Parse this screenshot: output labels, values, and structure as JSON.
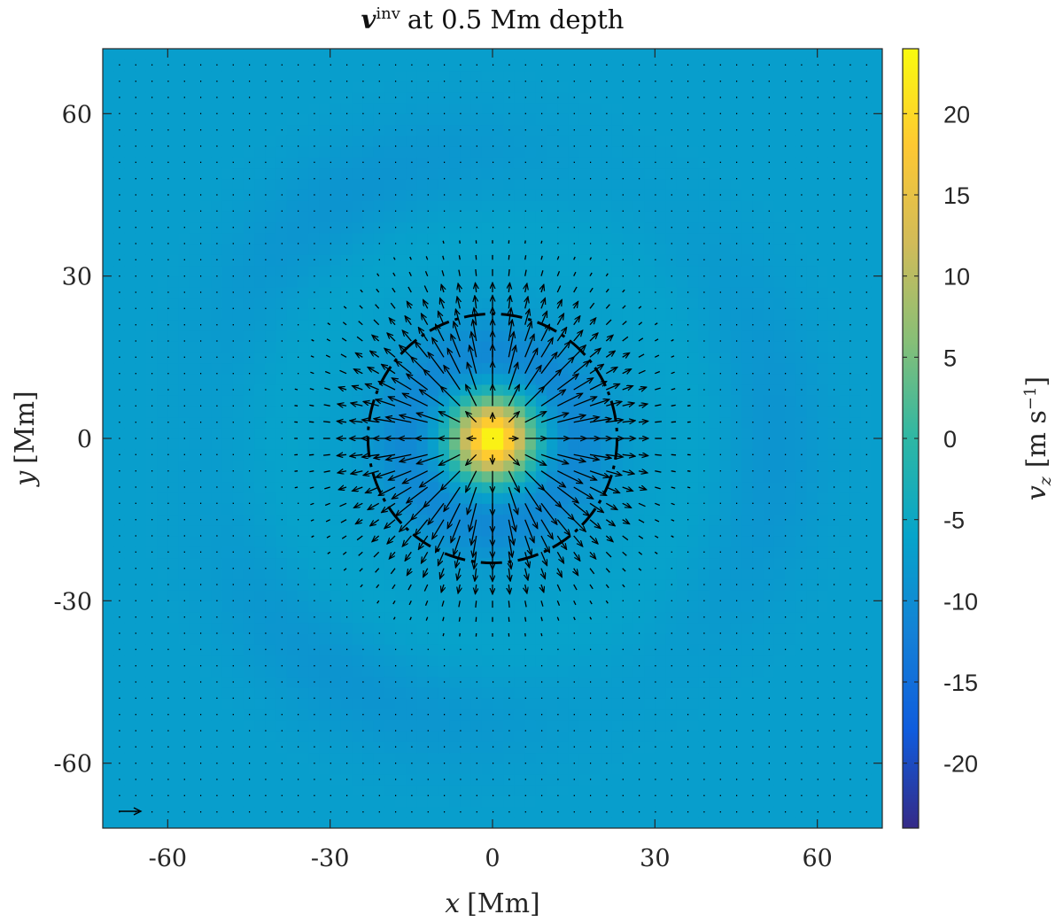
{
  "chart_data": {
    "type": "heatmap",
    "title": {
      "symbol": "v",
      "superscript": "inv",
      "rest": "at 0.5 Mm depth"
    },
    "xlabel": {
      "symbol": "x",
      "unit": "[Mm]"
    },
    "ylabel": {
      "symbol": "y",
      "unit": "[Mm]"
    },
    "xlim": [
      -72,
      72
    ],
    "ylim": [
      -72,
      72
    ],
    "xticks": [
      -60,
      -30,
      0,
      30,
      60
    ],
    "xtick_labels": [
      "-60",
      "-30",
      "0",
      "30",
      "60"
    ],
    "yticks": [
      -60,
      -30,
      0,
      30,
      60
    ],
    "ytick_labels": [
      "-60",
      "-30",
      "0",
      "30",
      "60"
    ],
    "grid": false,
    "field": {
      "description": "vertical velocity v_z",
      "center": [
        0,
        0
      ],
      "peak_value": 24,
      "core_radius_mm": 5,
      "ring_min_value": -11,
      "ring_radius_mm": 15,
      "background_value": -7
    },
    "colorbar": {
      "label_symbol": "v",
      "label_subscript": "z",
      "label_unit_text": "[m s",
      "label_unit_exp": "−1",
      "label_unit_close": "]",
      "range": [
        -24,
        24
      ],
      "ticks": [
        20,
        15,
        10,
        5,
        0,
        -5,
        -10,
        -15,
        -20
      ],
      "tick_labels": [
        "20",
        "15",
        "10",
        "5",
        "0",
        "-5",
        "-10",
        "-15",
        "-20"
      ],
      "colormap": "parula"
    },
    "dashed_circle": {
      "center": [
        0,
        0
      ],
      "radius_mm": 23
    },
    "quiver": {
      "grid_spacing_mm": 3,
      "pattern": "radial outflow from center",
      "max_speed_radius_mm": 11,
      "reference_vector_present": true
    }
  }
}
